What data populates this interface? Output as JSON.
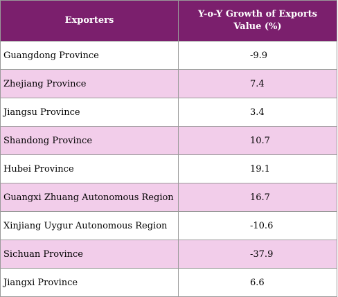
{
  "chart_data": {
    "type": "table",
    "columns": [
      "Exporters",
      "Y-o-Y Growth of Exports Value (%)"
    ],
    "rows": [
      {
        "exporter": "Guangdong Province",
        "value": "-9.9"
      },
      {
        "exporter": "Zhejiang Province",
        "value": "7.4"
      },
      {
        "exporter": "Jiangsu Province",
        "value": "3.4"
      },
      {
        "exporter": "Shandong Province",
        "value": "10.7"
      },
      {
        "exporter": "Hubei Province",
        "value": "19.1"
      },
      {
        "exporter": "Guangxi Zhuang Autonomous Region",
        "value": "16.7"
      },
      {
        "exporter": "Xinjiang Uygur Autonomous Region",
        "value": "-10.6"
      },
      {
        "exporter": "Sichuan Province",
        "value": "-37.9"
      },
      {
        "exporter": "Jiangxi Province",
        "value": "6.6"
      }
    ]
  },
  "colors": {
    "header_bg": "#7b1f6d",
    "header_text": "#ffffff",
    "row_alt_bg": "#f2cdea",
    "row_bg": "#ffffff",
    "grid": "#9a9a9a"
  }
}
